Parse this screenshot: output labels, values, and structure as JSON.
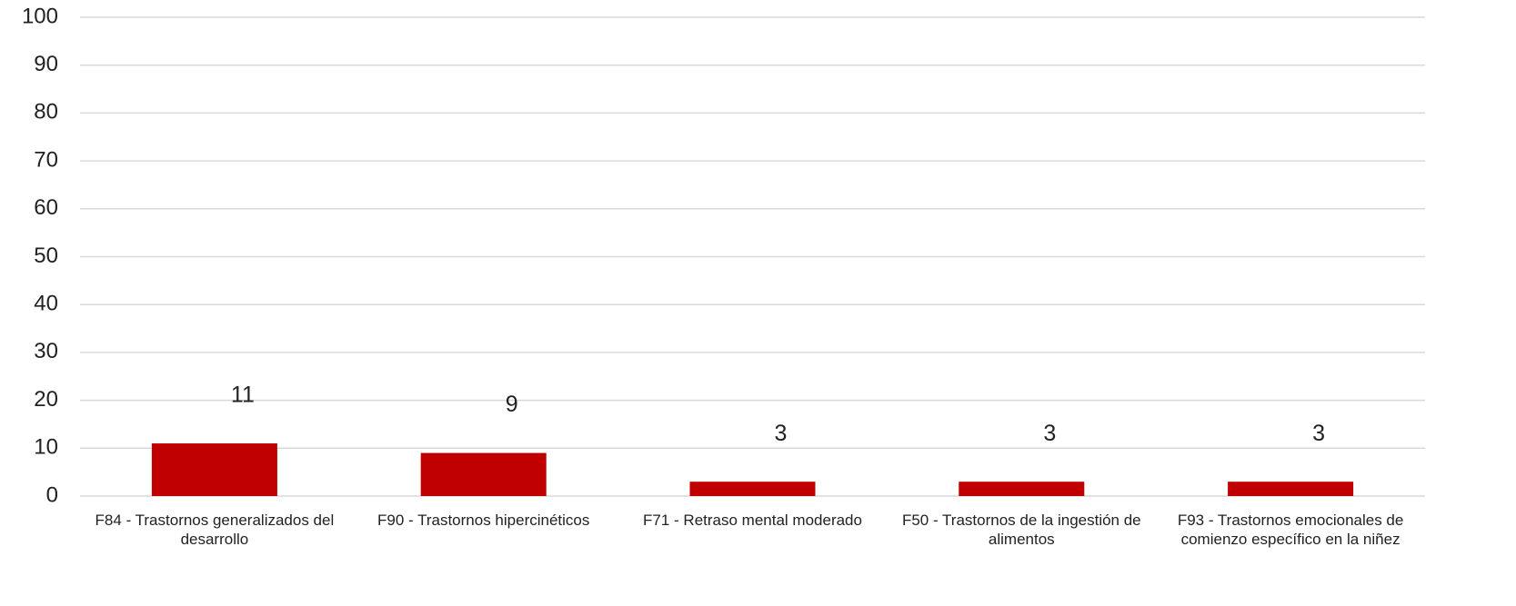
{
  "chart_data": {
    "type": "bar",
    "categories": [
      "F84  - Trastornos generalizados del desarrollo",
      "F90  - Trastornos hipercinéticos",
      "F71  - Retraso mental moderado",
      "F50  - Trastornos de la ingestión de alimentos",
      "F93  - Trastornos emocionales de comienzo específico en la niñez"
    ],
    "values": [
      11,
      9,
      3,
      3,
      3
    ],
    "color": "#c00000",
    "ylim": [
      0,
      100
    ],
    "yticks": [
      0,
      10,
      20,
      30,
      40,
      50,
      60,
      70,
      80,
      90,
      100
    ],
    "grid": true
  }
}
